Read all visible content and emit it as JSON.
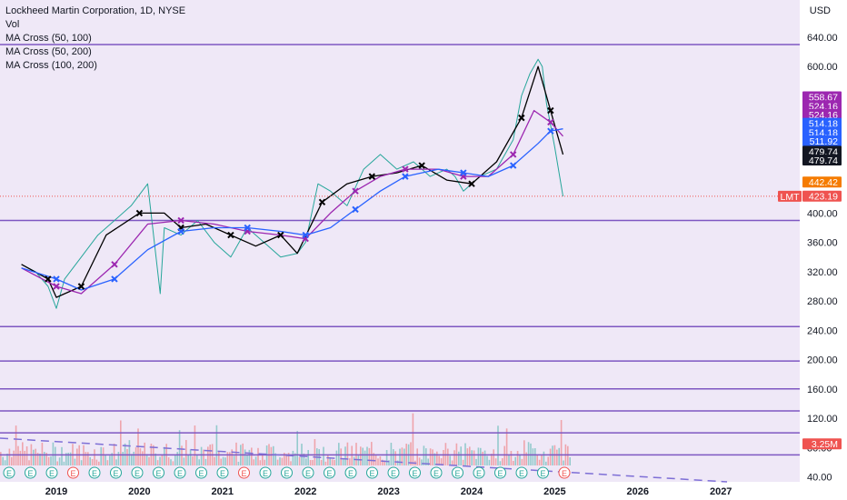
{
  "header": {
    "title": "Lockheed Martin Corporation, 1D, NYSE",
    "indicators": [
      "Vol",
      "MA Cross (50, 100)",
      "MA Cross (50, 200)",
      "MA Cross (100, 200)"
    ],
    "currency": "USD",
    "ticker": "LMT"
  },
  "chart_data": {
    "type": "line",
    "title": "Lockheed Martin Corporation, 1D, NYSE",
    "xlabel": "",
    "ylabel": "",
    "ylim": [
      40,
      660
    ],
    "grid": false,
    "legend": "top-left",
    "x_ticks": [
      "2019",
      "2020",
      "2021",
      "2022",
      "2023",
      "2024",
      "2025",
      "2026",
      "2027"
    ],
    "y_ticks": [
      40,
      80,
      120,
      160,
      200,
      240,
      280,
      320,
      360,
      400,
      440,
      480,
      520,
      560,
      600,
      640
    ],
    "y_tick_labels": [
      "40.00",
      "80.00",
      "120.00",
      "160.00",
      "200.00",
      "240.00",
      "280.00",
      "320.00",
      "360.00",
      "400.00",
      "440.00",
      "480.00",
      "520.00",
      "560.00",
      "600.00",
      "640.00"
    ],
    "series": [
      {
        "name": "LMT",
        "color": "#26a69a",
        "x": [
          2018.58,
          2018.75,
          2018.9,
          2019.0,
          2019.1,
          2019.3,
          2019.5,
          2019.7,
          2019.9,
          2020.1,
          2020.2,
          2020.25,
          2020.3,
          2020.5,
          2020.7,
          2020.9,
          2021.1,
          2021.3,
          2021.5,
          2021.7,
          2021.9,
          2022.0,
          2022.15,
          2022.3,
          2022.5,
          2022.7,
          2022.9,
          2023.1,
          2023.3,
          2023.5,
          2023.7,
          2023.8,
          2023.9,
          2024.1,
          2024.3,
          2024.5,
          2024.6,
          2024.7,
          2024.8,
          2024.85,
          2024.9,
          2025.0,
          2025.1
        ],
        "values": [
          330,
          320,
          300,
          270,
          310,
          340,
          370,
          390,
          410,
          440,
          340,
          290,
          380,
          370,
          390,
          360,
          340,
          380,
          360,
          340,
          345,
          360,
          440,
          430,
          410,
          460,
          480,
          460,
          470,
          450,
          460,
          450,
          430,
          450,
          460,
          500,
          560,
          590,
          610,
          600,
          550,
          490,
          423
        ]
      },
      {
        "name": "MA 50",
        "color": "#000000",
        "x": [
          2018.58,
          2018.9,
          2019.0,
          2019.3,
          2019.6,
          2020.0,
          2020.3,
          2020.5,
          2020.8,
          2021.1,
          2021.4,
          2021.7,
          2021.9,
          2022.2,
          2022.5,
          2022.8,
          2023.1,
          2023.4,
          2023.7,
          2024.0,
          2024.3,
          2024.6,
          2024.8,
          2024.95,
          2025.1
        ],
        "values": [
          330,
          310,
          285,
          300,
          370,
          400,
          400,
          380,
          385,
          370,
          355,
          370,
          345,
          415,
          440,
          450,
          455,
          465,
          445,
          440,
          470,
          530,
          600,
          540,
          480
        ]
      },
      {
        "name": "MA 100",
        "color": "#9c27b0",
        "x": [
          2018.58,
          2019.0,
          2019.3,
          2019.7,
          2020.1,
          2020.5,
          2020.9,
          2021.3,
          2021.7,
          2022.0,
          2022.3,
          2022.6,
          2022.9,
          2023.2,
          2023.6,
          2023.9,
          2024.2,
          2024.5,
          2024.75,
          2024.95,
          2025.1
        ],
        "values": [
          325,
          300,
          290,
          330,
          385,
          390,
          385,
          375,
          370,
          365,
          400,
          430,
          450,
          460,
          460,
          450,
          450,
          480,
          540,
          524,
          505
        ]
      },
      {
        "name": "MA 200",
        "color": "#2962ff",
        "x": [
          2018.58,
          2019.0,
          2019.3,
          2019.7,
          2020.1,
          2020.5,
          2020.9,
          2021.3,
          2021.7,
          2022.0,
          2022.3,
          2022.6,
          2022.9,
          2023.2,
          2023.6,
          2023.9,
          2024.2,
          2024.5,
          2024.8,
          2024.95,
          2025.1
        ],
        "values": [
          325,
          310,
          295,
          310,
          350,
          375,
          380,
          380,
          375,
          370,
          380,
          405,
          430,
          450,
          460,
          455,
          450,
          465,
          495,
          512,
          515
        ]
      }
    ],
    "horizontal_levels": [
      630,
      390,
      245,
      198,
      160,
      130,
      100,
      70
    ],
    "badges": [
      {
        "label": "558.67",
        "value": 558.67,
        "bg": "#9c27b0"
      },
      {
        "label": "524.16",
        "value": 546.6,
        "bg": "#9c27b0"
      },
      {
        "label": "524.16",
        "value": 534.6,
        "bg": "#9c27b0"
      },
      {
        "label": "514.18",
        "value": 522.6,
        "bg": "#2962ff"
      },
      {
        "label": "514.18",
        "value": 510.6,
        "bg": "#2962ff"
      },
      {
        "label": "511.92",
        "value": 498.6,
        "bg": "#2962ff"
      },
      {
        "label": "479.74",
        "value": 484.4,
        "bg": "#131722"
      },
      {
        "label": "479.74",
        "value": 472.4,
        "bg": "#131722"
      },
      {
        "label": "442.42",
        "value": 442.42,
        "bg": "#f57c00"
      },
      {
        "label": "423.19",
        "value": 423.19,
        "bg": "#ef5350"
      },
      {
        "label": "3.25M",
        "value": 85,
        "bg": "#ef5350"
      }
    ]
  }
}
